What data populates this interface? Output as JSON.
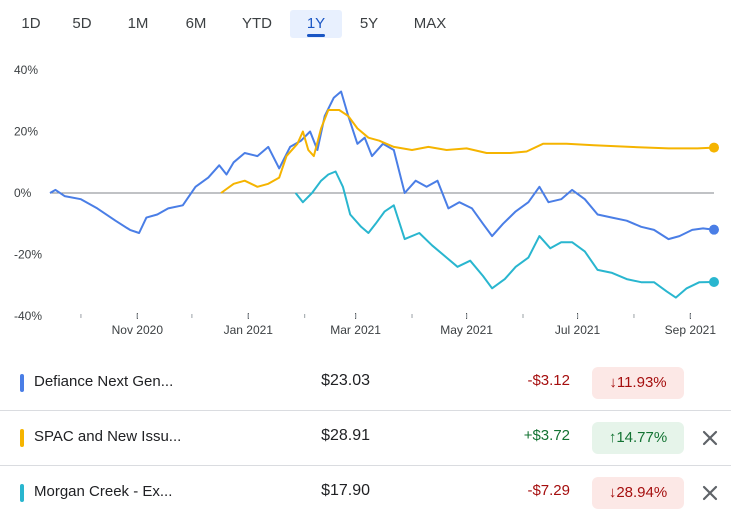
{
  "range_tabs": {
    "items": [
      {
        "label": "1D"
      },
      {
        "label": "5D"
      },
      {
        "label": "1M"
      },
      {
        "label": "6M"
      },
      {
        "label": "YTD"
      },
      {
        "label": "1Y",
        "active": true
      },
      {
        "label": "5Y"
      },
      {
        "label": "MAX"
      }
    ]
  },
  "chart_data": {
    "type": "line",
    "y_unit": "%",
    "yticks": [
      40,
      20,
      0,
      -20,
      -40
    ],
    "ylim": [
      -40,
      40
    ],
    "xlim": [
      "2020-09-14",
      "2021-09-14"
    ],
    "xticks": [
      {
        "label": "Nov 2020",
        "date": "2020-11-01"
      },
      {
        "label": "Jan 2021",
        "date": "2021-01-01"
      },
      {
        "label": "Mar 2021",
        "date": "2021-03-01"
      },
      {
        "label": "May 2021",
        "date": "2021-05-01"
      },
      {
        "label": "Jul 2021",
        "date": "2021-07-01"
      },
      {
        "label": "Sep 2021",
        "date": "2021-09-01"
      }
    ],
    "zero_line": true,
    "series": [
      {
        "name": "Defiance Next Gen...",
        "color": "#4a7ee6",
        "points": [
          [
            "2020-09-14",
            0
          ],
          [
            "2020-09-17",
            1
          ],
          [
            "2020-09-22",
            -1
          ],
          [
            "2020-10-01",
            -2
          ],
          [
            "2020-10-10",
            -5
          ],
          [
            "2020-10-20",
            -9
          ],
          [
            "2020-10-28",
            -12
          ],
          [
            "2020-11-02",
            -13
          ],
          [
            "2020-11-06",
            -8
          ],
          [
            "2020-11-12",
            -7
          ],
          [
            "2020-11-18",
            -5
          ],
          [
            "2020-11-26",
            -4
          ],
          [
            "2020-12-03",
            2
          ],
          [
            "2020-12-10",
            5
          ],
          [
            "2020-12-16",
            9
          ],
          [
            "2020-12-20",
            6
          ],
          [
            "2020-12-24",
            10
          ],
          [
            "2020-12-30",
            13
          ],
          [
            "2021-01-06",
            12
          ],
          [
            "2021-01-12",
            15
          ],
          [
            "2021-01-18",
            8
          ],
          [
            "2021-01-24",
            15
          ],
          [
            "2021-01-30",
            17
          ],
          [
            "2021-02-04",
            20
          ],
          [
            "2021-02-08",
            14
          ],
          [
            "2021-02-12",
            25
          ],
          [
            "2021-02-17",
            31
          ],
          [
            "2021-02-21",
            33
          ],
          [
            "2021-02-25",
            25
          ],
          [
            "2021-03-02",
            16
          ],
          [
            "2021-03-06",
            18
          ],
          [
            "2021-03-10",
            12
          ],
          [
            "2021-03-16",
            16
          ],
          [
            "2021-03-22",
            14
          ],
          [
            "2021-03-28",
            0
          ],
          [
            "2021-04-03",
            4
          ],
          [
            "2021-04-09",
            2
          ],
          [
            "2021-04-15",
            4
          ],
          [
            "2021-04-21",
            -5
          ],
          [
            "2021-04-27",
            -3
          ],
          [
            "2021-05-04",
            -5
          ],
          [
            "2021-05-10",
            -10
          ],
          [
            "2021-05-15",
            -14
          ],
          [
            "2021-05-21",
            -10
          ],
          [
            "2021-05-28",
            -6
          ],
          [
            "2021-06-04",
            -3
          ],
          [
            "2021-06-10",
            2
          ],
          [
            "2021-06-15",
            -3
          ],
          [
            "2021-06-22",
            -2
          ],
          [
            "2021-06-28",
            1
          ],
          [
            "2021-07-05",
            -2
          ],
          [
            "2021-07-12",
            -7
          ],
          [
            "2021-07-20",
            -8
          ],
          [
            "2021-07-28",
            -9
          ],
          [
            "2021-08-05",
            -11
          ],
          [
            "2021-08-12",
            -12
          ],
          [
            "2021-08-20",
            -15
          ],
          [
            "2021-08-26",
            -14
          ],
          [
            "2021-09-02",
            -12
          ],
          [
            "2021-09-08",
            -11.5
          ],
          [
            "2021-09-14",
            -11.93
          ]
        ]
      },
      {
        "name": "SPAC and New Issu...",
        "color": "#f5b400",
        "points": [
          [
            "2020-12-17",
            0
          ],
          [
            "2020-12-24",
            3
          ],
          [
            "2020-12-30",
            4
          ],
          [
            "2021-01-06",
            2
          ],
          [
            "2021-01-12",
            3
          ],
          [
            "2021-01-18",
            5
          ],
          [
            "2021-01-22",
            12
          ],
          [
            "2021-01-28",
            16
          ],
          [
            "2021-01-31",
            20
          ],
          [
            "2021-02-03",
            14
          ],
          [
            "2021-02-06",
            12
          ],
          [
            "2021-02-10",
            21
          ],
          [
            "2021-02-14",
            27
          ],
          [
            "2021-02-20",
            27
          ],
          [
            "2021-02-25",
            25
          ],
          [
            "2021-03-02",
            21
          ],
          [
            "2021-03-08",
            18
          ],
          [
            "2021-03-14",
            17
          ],
          [
            "2021-03-22",
            15
          ],
          [
            "2021-04-01",
            14
          ],
          [
            "2021-04-10",
            15
          ],
          [
            "2021-04-20",
            14
          ],
          [
            "2021-05-01",
            14.5
          ],
          [
            "2021-05-12",
            13
          ],
          [
            "2021-05-25",
            13
          ],
          [
            "2021-06-03",
            13.5
          ],
          [
            "2021-06-12",
            16
          ],
          [
            "2021-06-25",
            16
          ],
          [
            "2021-07-10",
            15.5
          ],
          [
            "2021-07-30",
            15
          ],
          [
            "2021-08-20",
            14.5
          ],
          [
            "2021-09-05",
            14.5
          ],
          [
            "2021-09-14",
            14.77
          ]
        ]
      },
      {
        "name": "Morgan Creek - Ex...",
        "color": "#29b6cf",
        "points": [
          [
            "2021-01-27",
            0
          ],
          [
            "2021-01-31",
            -3
          ],
          [
            "2021-02-05",
            0
          ],
          [
            "2021-02-10",
            4
          ],
          [
            "2021-02-14",
            6
          ],
          [
            "2021-02-18",
            7
          ],
          [
            "2021-02-22",
            2
          ],
          [
            "2021-02-26",
            -7
          ],
          [
            "2021-03-04",
            -11
          ],
          [
            "2021-03-08",
            -13
          ],
          [
            "2021-03-12",
            -10
          ],
          [
            "2021-03-17",
            -6
          ],
          [
            "2021-03-22",
            -4
          ],
          [
            "2021-03-28",
            -15
          ],
          [
            "2021-04-05",
            -13
          ],
          [
            "2021-04-12",
            -17
          ],
          [
            "2021-04-20",
            -21
          ],
          [
            "2021-04-26",
            -24
          ],
          [
            "2021-05-03",
            -22
          ],
          [
            "2021-05-10",
            -27
          ],
          [
            "2021-05-15",
            -31
          ],
          [
            "2021-05-22",
            -28
          ],
          [
            "2021-05-28",
            -24
          ],
          [
            "2021-06-04",
            -21
          ],
          [
            "2021-06-10",
            -14
          ],
          [
            "2021-06-16",
            -18
          ],
          [
            "2021-06-22",
            -16
          ],
          [
            "2021-06-28",
            -16
          ],
          [
            "2021-07-05",
            -19
          ],
          [
            "2021-07-12",
            -25
          ],
          [
            "2021-07-20",
            -26
          ],
          [
            "2021-07-28",
            -28
          ],
          [
            "2021-08-05",
            -29
          ],
          [
            "2021-08-12",
            -29
          ],
          [
            "2021-08-19",
            -32
          ],
          [
            "2021-08-24",
            -34
          ],
          [
            "2021-08-30",
            -31
          ],
          [
            "2021-09-06",
            -29
          ],
          [
            "2021-09-14",
            -28.94
          ]
        ]
      }
    ]
  },
  "holdings": [
    {
      "name": "Defiance Next Gen...",
      "color": "#4a7ee6",
      "price": "$23.03",
      "change": "-$3.12",
      "arrow": "↓",
      "pct": "11.93%",
      "direction": "neg",
      "removable": false
    },
    {
      "name": "SPAC and New Issu...",
      "color": "#f5b400",
      "price": "$28.91",
      "change": "+$3.72",
      "arrow": "↑",
      "pct": "14.77%",
      "direction": "pos",
      "removable": true
    },
    {
      "name": "Morgan Creek - Ex...",
      "color": "#29b6cf",
      "price": "$17.90",
      "change": "-$7.29",
      "arrow": "↓",
      "pct": "28.94%",
      "direction": "neg",
      "removable": true
    }
  ],
  "icons": {
    "remove": "close-icon"
  }
}
